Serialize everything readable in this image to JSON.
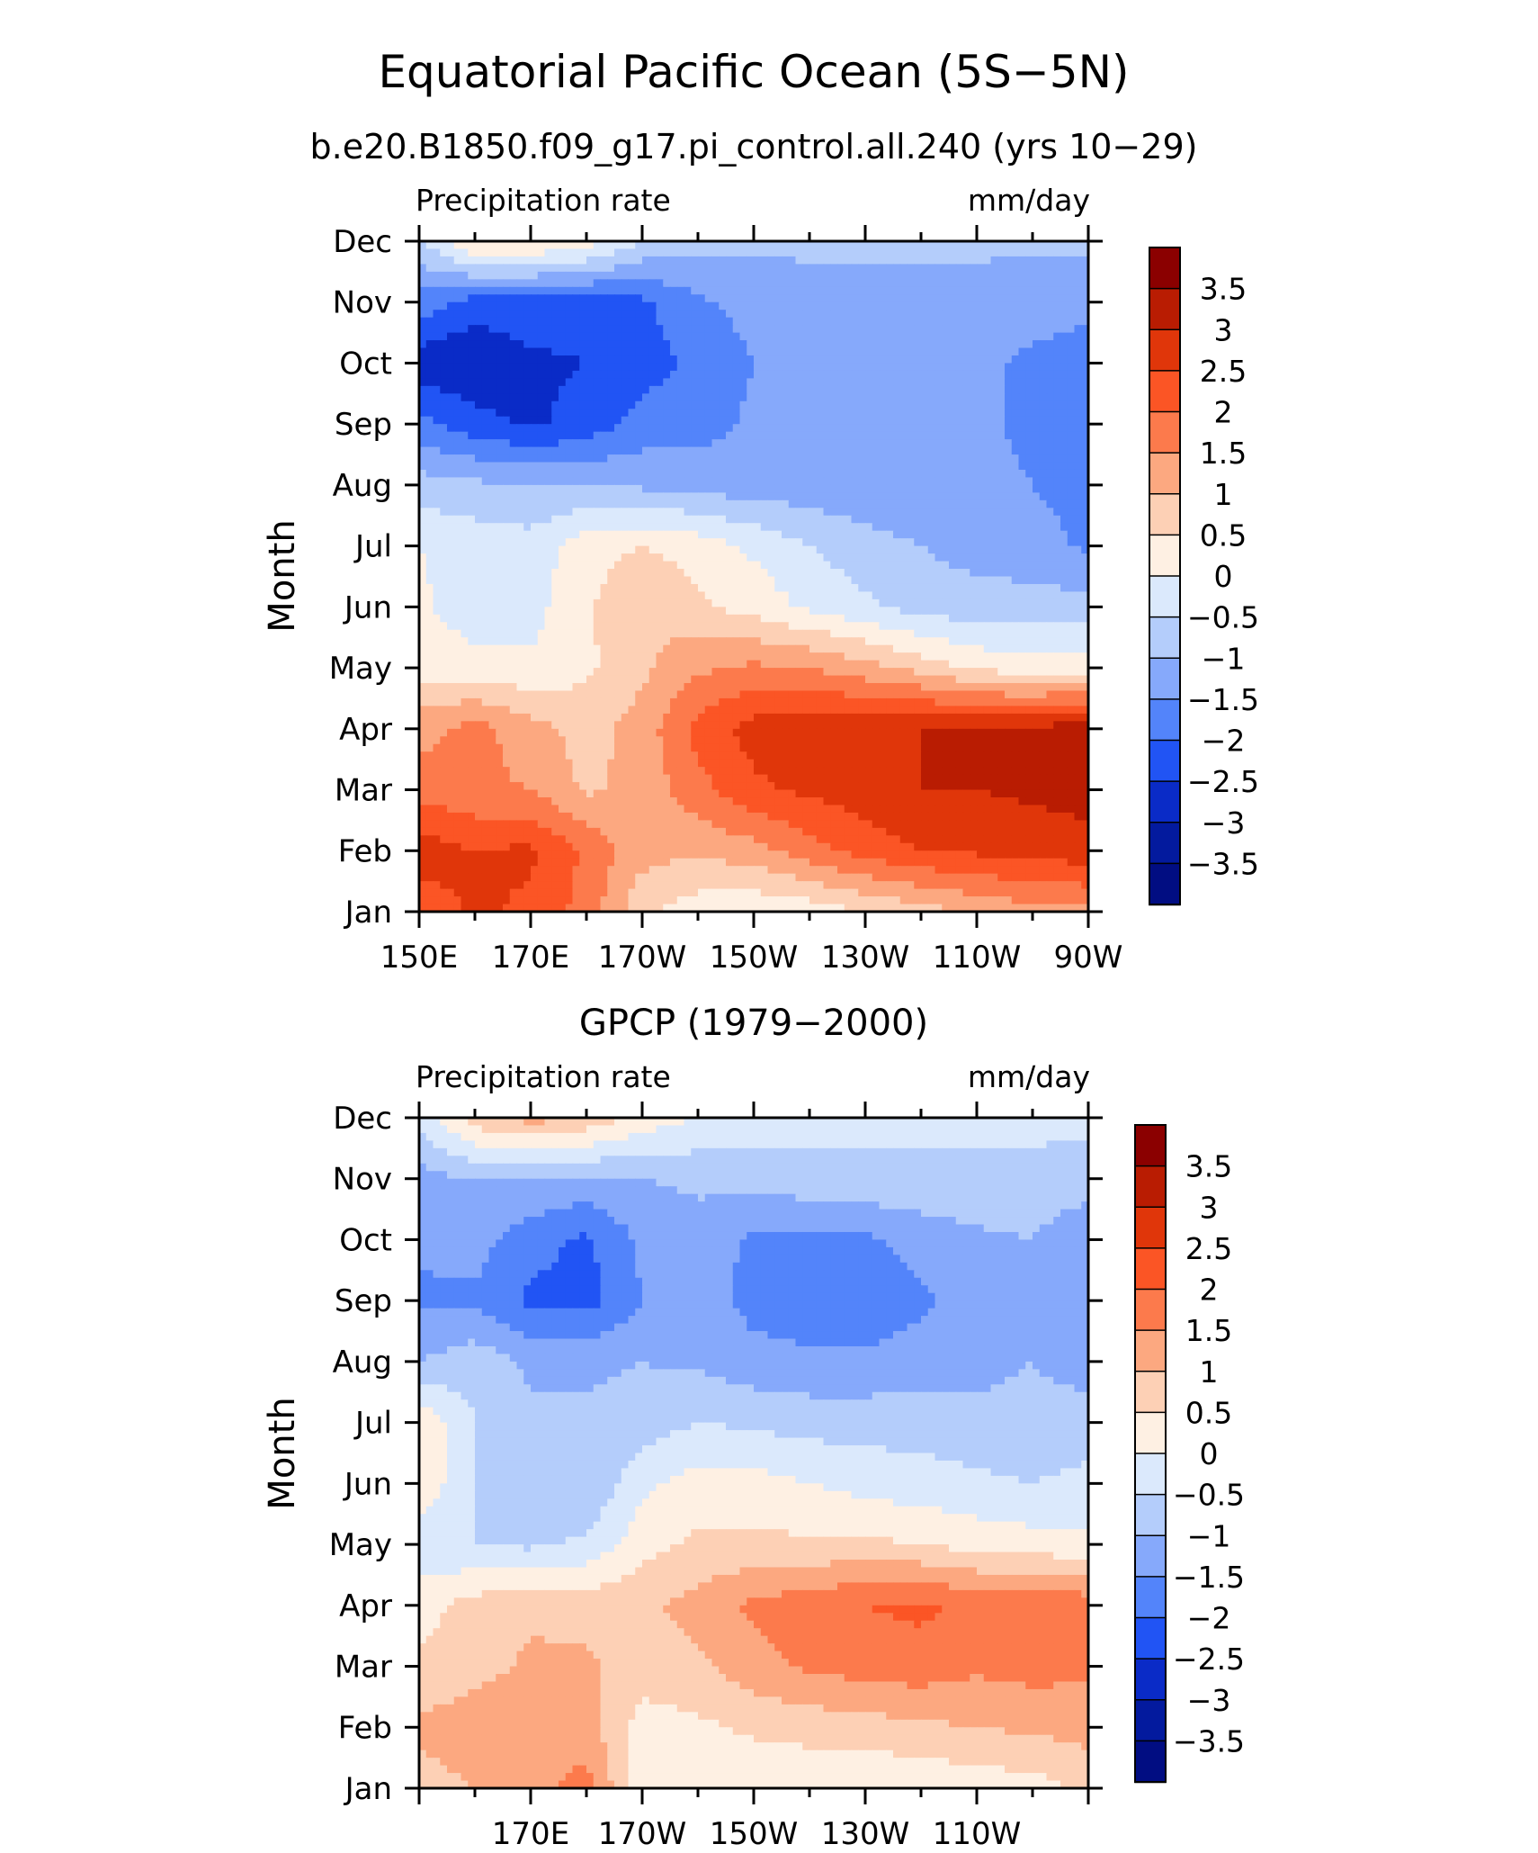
{
  "figure": {
    "title": "Equatorial Pacific Ocean (5S−5N)",
    "subtitle": "b.e20.B1850.f09_g17.pi_control.all.240 (yrs 10−29)"
  },
  "chart_data": [
    {
      "type": "heatmap",
      "panel_title": "",
      "left_label": "Precipitation rate",
      "right_label": "mm/day",
      "ylabel": "Month",
      "xlabel": "",
      "x_ticks": [
        "150E",
        "170E",
        "170W",
        "150W",
        "130W",
        "110W",
        "90W"
      ],
      "y_ticks": [
        "Jan",
        "Feb",
        "Mar",
        "Apr",
        "May",
        "Jun",
        "Jul",
        "Aug",
        "Sep",
        "Oct",
        "Nov",
        "Dec"
      ],
      "x_range": [
        150,
        270
      ],
      "levels": [
        3.5,
        3,
        2.5,
        2,
        1.5,
        1,
        0.5,
        0,
        -0.5,
        -1,
        -1.5,
        -2,
        -2.5,
        -3,
        -3.5
      ],
      "level_labels": [
        "3.5",
        "3",
        "2.5",
        "2",
        "1.5",
        "1",
        "0.5",
        "0",
        "−0.5",
        "−1",
        "−1.5",
        "−2",
        "−2.5",
        "−3",
        "−3.5"
      ],
      "colors": [
        "#8b0000",
        "#b91c02",
        "#e0360a",
        "#fb5525",
        "#fc7a4c",
        "#fca880",
        "#fdd0b5",
        "#fef0e3",
        "#dbe9fc",
        "#b4cdfb",
        "#86a9fb",
        "#5384fa",
        "#2154f4",
        "#0a2bc7",
        "#031a9e",
        "#010d82"
      ],
      "x": [
        150,
        160,
        170,
        180,
        190,
        200,
        210,
        220,
        230,
        240,
        250,
        260,
        270
      ],
      "y": [
        "Jan",
        "Feb",
        "Mar",
        "Apr",
        "May",
        "Jun",
        "Jul",
        "Aug",
        "Sep",
        "Oct",
        "Nov",
        "Dec"
      ],
      "values": [
        [
          2.2,
          2.6,
          2.4,
          1.8,
          0.6,
          0.2,
          0.1,
          0.2,
          0.5,
          0.8,
          1.1,
          1.3,
          1.4
        ],
        [
          2.8,
          2.5,
          2.6,
          1.9,
          1.2,
          1.1,
          1.3,
          1.8,
          2.2,
          2.5,
          2.6,
          2.7,
          2.8
        ],
        [
          1.8,
          1.6,
          1.5,
          0.9,
          1.2,
          1.8,
          2.4,
          2.6,
          2.8,
          3.0,
          3.0,
          3.1,
          3.2
        ],
        [
          1.3,
          1.7,
          1.2,
          0.8,
          1.2,
          2.2,
          2.7,
          2.9,
          2.9,
          3.0,
          3.0,
          3.1,
          3.3
        ],
        [
          0.3,
          0.2,
          0.1,
          0.4,
          0.9,
          1.4,
          1.6,
          1.5,
          1.2,
          0.8,
          0.4,
          0.2,
          0.3
        ],
        [
          0.1,
          -0.3,
          -0.2,
          0.4,
          1.0,
          0.6,
          0.3,
          -0.1,
          -0.4,
          -0.7,
          -0.8,
          -0.8,
          -0.8
        ],
        [
          0.0,
          -0.2,
          -0.3,
          0.3,
          0.5,
          0.3,
          -0.1,
          -0.5,
          -0.8,
          -1.0,
          -1.2,
          -1.3,
          -1.6
        ],
        [
          -0.8,
          -0.9,
          -1.0,
          -1.0,
          -1.1,
          -1.2,
          -1.3,
          -1.3,
          -1.4,
          -1.4,
          -1.4,
          -1.5,
          -1.7
        ],
        [
          -1.8,
          -2.3,
          -2.6,
          -2.3,
          -1.8,
          -1.7,
          -1.4,
          -1.3,
          -1.3,
          -1.4,
          -1.4,
          -1.6,
          -1.8
        ],
        [
          -2.8,
          -3.0,
          -2.6,
          -2.5,
          -2.2,
          -1.9,
          -1.5,
          -1.4,
          -1.3,
          -1.4,
          -1.4,
          -1.6,
          -1.7
        ],
        [
          -1.7,
          -2.2,
          -2.2,
          -2.3,
          -2.1,
          -1.6,
          -1.3,
          -1.2,
          -1.2,
          -1.2,
          -1.2,
          -1.3,
          -1.4
        ],
        [
          -0.6,
          0.6,
          0.6,
          0.3,
          -0.5,
          -0.8,
          -0.9,
          -0.9,
          -0.9,
          -0.9,
          -0.9,
          -0.9,
          -0.9
        ]
      ]
    },
    {
      "type": "heatmap",
      "panel_title": "GPCP (1979−2000)",
      "left_label": "Precipitation rate",
      "right_label": "mm/day",
      "ylabel": "Month",
      "xlabel": "",
      "x_ticks": [
        "170E",
        "170W",
        "150W",
        "130W",
        "110W"
      ],
      "y_ticks": [
        "Jan",
        "Feb",
        "Mar",
        "Apr",
        "May",
        "Jun",
        "Jul",
        "Aug",
        "Sep",
        "Oct",
        "Nov",
        "Dec"
      ],
      "x_range": [
        150,
        270
      ],
      "levels": [
        3.5,
        3,
        2.5,
        2,
        1.5,
        1,
        0.5,
        0,
        -0.5,
        -1,
        -1.5,
        -2,
        -2.5,
        -3,
        -3.5
      ],
      "level_labels": [
        "3.5",
        "3",
        "2.5",
        "2",
        "1.5",
        "1",
        "0.5",
        "0",
        "−0.5",
        "−1",
        "−1.5",
        "−2",
        "−2.5",
        "−3",
        "−3.5"
      ],
      "colors": [
        "#8b0000",
        "#b91c02",
        "#e0360a",
        "#fb5525",
        "#fc7a4c",
        "#fca880",
        "#fdd0b5",
        "#fef0e3",
        "#dbe9fc",
        "#b4cdfb",
        "#86a9fb",
        "#5384fa",
        "#2154f4",
        "#0a2bc7",
        "#031a9e",
        "#010d82"
      ],
      "x": [
        150,
        160,
        170,
        180,
        190,
        200,
        210,
        220,
        230,
        240,
        250,
        260,
        270
      ],
      "y": [
        "Jan",
        "Feb",
        "Mar",
        "Apr",
        "May",
        "Jun",
        "Jul",
        "Aug",
        "Sep",
        "Oct",
        "Nov",
        "Dec"
      ],
      "values": [
        [
          0.8,
          1.0,
          1.3,
          1.7,
          0.2,
          0.1,
          0.1,
          0.1,
          0.0,
          0.1,
          0.2,
          0.3,
          0.6
        ],
        [
          1.1,
          1.3,
          1.4,
          1.2,
          0.3,
          0.4,
          0.6,
          0.7,
          0.8,
          0.9,
          1.0,
          1.1,
          1.2
        ],
        [
          0.6,
          0.8,
          1.1,
          1.1,
          0.7,
          0.9,
          1.3,
          1.6,
          1.7,
          1.8,
          1.6,
          1.7,
          1.6
        ],
        [
          0.3,
          0.7,
          0.9,
          0.8,
          0.9,
          1.2,
          1.6,
          1.8,
          2.0,
          2.1,
          1.9,
          2.0,
          1.8
        ],
        [
          -0.4,
          -0.5,
          -0.6,
          -0.4,
          0.3,
          0.6,
          0.6,
          0.6,
          0.6,
          0.5,
          0.3,
          0.2,
          0.1
        ],
        [
          0.4,
          -0.5,
          -0.9,
          -1.0,
          -0.1,
          0.2,
          0.2,
          0.0,
          -0.2,
          -0.3,
          -0.4,
          -0.5,
          -0.4
        ],
        [
          0.4,
          -0.5,
          -0.9,
          -0.9,
          -0.8,
          -0.5,
          -0.6,
          -0.7,
          -0.7,
          -0.7,
          -0.8,
          -0.8,
          -0.7
        ],
        [
          -1.0,
          -0.7,
          -1.1,
          -1.1,
          -1.0,
          -1.1,
          -1.3,
          -1.4,
          -1.4,
          -1.3,
          -1.2,
          -1.0,
          -1.3
        ],
        [
          -1.6,
          -1.6,
          -2.1,
          -2.2,
          -1.5,
          -1.2,
          -1.7,
          -1.8,
          -1.8,
          -1.6,
          -1.2,
          -1.0,
          -1.5
        ],
        [
          -1.4,
          -1.3,
          -1.8,
          -2.1,
          -1.4,
          -1.2,
          -1.6,
          -1.6,
          -1.6,
          -1.3,
          -1.1,
          -1.0,
          -1.5
        ],
        [
          -1.2,
          -1.0,
          -1.0,
          -1.1,
          -1.0,
          -0.9,
          -0.8,
          -0.7,
          -0.6,
          -0.6,
          -0.6,
          -0.6,
          -0.7
        ],
        [
          -0.3,
          0.8,
          1.2,
          0.9,
          0.3,
          0.0,
          -0.2,
          -0.3,
          -0.4,
          -0.4,
          -0.4,
          -0.4,
          -0.4
        ]
      ]
    }
  ]
}
